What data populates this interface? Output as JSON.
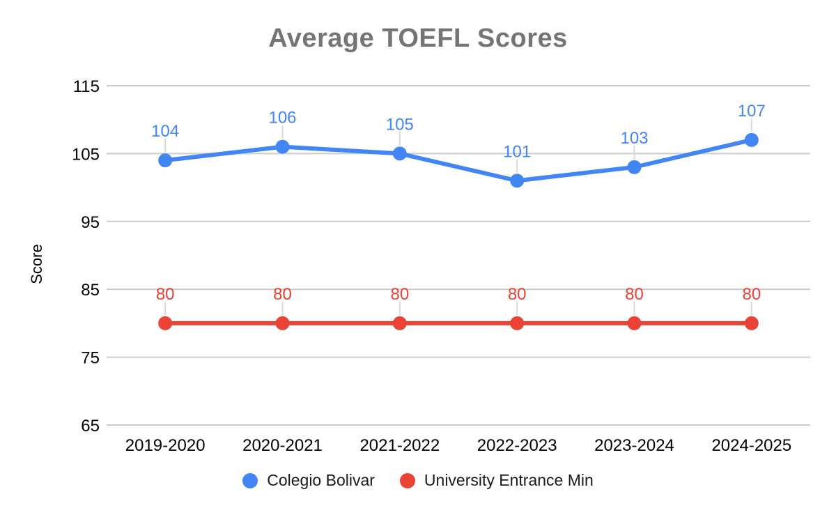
{
  "page": {
    "background": "#ffffff"
  },
  "chart_data": {
    "type": "line",
    "title": "Average TOEFL Scores",
    "xlabel": "",
    "ylabel": "Score",
    "categories": [
      "2019-2020",
      "2020-2021",
      "2021-2022",
      "2022-2023",
      "2023-2024",
      "2024-2025"
    ],
    "series": [
      {
        "name": "Colegio Bolivar",
        "color": "#4285F4",
        "values": [
          104,
          106,
          105,
          101,
          103,
          107
        ]
      },
      {
        "name": "University Entrance Min",
        "color": "#EA4335",
        "values": [
          80,
          80,
          80,
          80,
          80,
          80
        ]
      }
    ],
    "yticks": [
      65,
      75,
      85,
      95,
      105,
      115
    ],
    "ylim": [
      65,
      115
    ],
    "grid": true,
    "show_data_labels": true,
    "legend_position": "bottom",
    "colors": {
      "title": "#757575",
      "axis_text": "#000000",
      "grid_line": "#cccccc",
      "label_stem": "#d9d9d9"
    }
  }
}
